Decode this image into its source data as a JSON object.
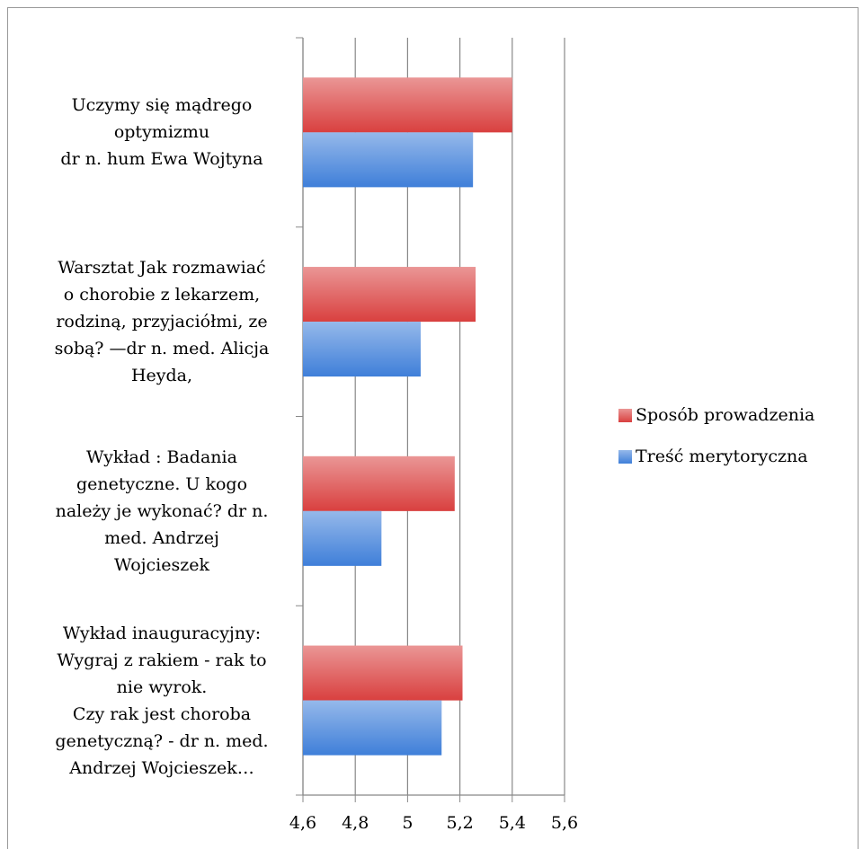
{
  "chart_data": {
    "type": "bar",
    "orientation": "horizontal",
    "categories": [
      "Uczymy się mądrego\noptymizmu\ndr n. hum Ewa Wojtyna",
      "Warsztat Jak rozmawiać\no chorobie z lekarzem,\nrodziną, przyjaciółmi, ze\nsobą? —dr n. med. Alicja\nHeyda,",
      "Wykład : Badania\ngenetyczne. U kogo\nnależy je wykonać?  dr n.\nmed. Andrzej\nWojcieszek",
      "Wykład inauguracyjny:\nWygraj z rakiem - rak to\nnie wyrok.\nCzy rak jest choroba\ngenetyczną? - dr n. med.\nAndrzej Wojcieszek…"
    ],
    "series": [
      {
        "name": "Sposób prowadzenia",
        "color": "#d9403f",
        "values": [
          5.4,
          5.26,
          5.18,
          5.21
        ]
      },
      {
        "name": "Treść merytoryczna",
        "color": "#3f7fd9",
        "values": [
          5.25,
          5.05,
          4.9,
          5.13
        ]
      }
    ],
    "xlim": [
      4.6,
      5.6
    ],
    "xticks": [
      {
        "value": 4.6,
        "label": "4,6"
      },
      {
        "value": 4.8,
        "label": "4,8"
      },
      5,
      {
        "value": 5.2,
        "label": "5,2"
      },
      {
        "value": 5.4,
        "label": "5,4"
      },
      {
        "value": 5.6,
        "label": "5,6"
      }
    ],
    "grid": true,
    "legend": "right"
  }
}
